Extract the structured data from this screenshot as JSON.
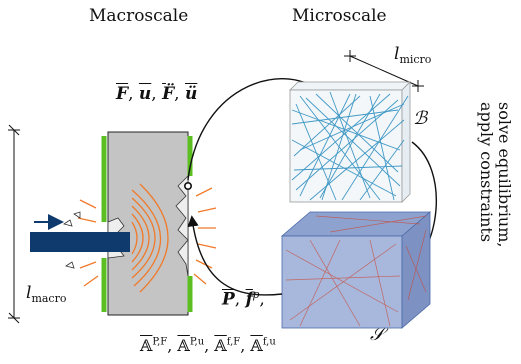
{
  "headings": {
    "macroscale": "Macroscale",
    "microscale": "Microscale"
  },
  "labels": {
    "l_micro": "l",
    "l_micro_sub": "micro",
    "l_macro": "l",
    "l_macro_sub": "macro",
    "boundary_B": "ℬ",
    "boundary_S": "𝒮",
    "macro_to_micro": "F̅, u̅, F̈̅, ü̅",
    "micro_to_macro": "P̅, f̅ᵖ",
    "tangents": "A̅P,F, A̅P,u, A̅f,F, A̅f,u",
    "side_line1": "solve equilibrium,",
    "side_line2": "apply constraints"
  },
  "colors": {
    "plate_fill": "#c4c4c4",
    "coating": "#5bbf22",
    "impact_waves": "#f07a2a",
    "projectile": "#0f3a6e",
    "fiber": "#2f8fc0",
    "cube_blue": "#4a6aaa"
  }
}
